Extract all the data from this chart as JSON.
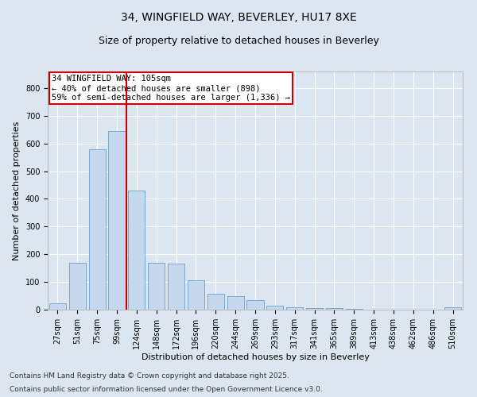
{
  "title_line1": "34, WINGFIELD WAY, BEVERLEY, HU17 8XE",
  "title_line2": "Size of property relative to detached houses in Beverley",
  "xlabel": "Distribution of detached houses by size in Beverley",
  "ylabel": "Number of detached properties",
  "categories": [
    "27sqm",
    "51sqm",
    "75sqm",
    "99sqm",
    "124sqm",
    "148sqm",
    "172sqm",
    "196sqm",
    "220sqm",
    "244sqm",
    "269sqm",
    "293sqm",
    "317sqm",
    "341sqm",
    "365sqm",
    "389sqm",
    "413sqm",
    "438sqm",
    "462sqm",
    "486sqm",
    "510sqm"
  ],
  "values": [
    22,
    168,
    580,
    645,
    430,
    168,
    165,
    105,
    57,
    48,
    33,
    15,
    10,
    7,
    5,
    4,
    0,
    0,
    0,
    0,
    8
  ],
  "bar_color": "#c5d8ed",
  "bar_edge_color": "#6b9fc8",
  "background_color": "#dce6f1",
  "grid_color": "#ffffff",
  "vline_color": "#cc0000",
  "annotation_text": "34 WINGFIELD WAY: 105sqm\n← 40% of detached houses are smaller (898)\n59% of semi-detached houses are larger (1,336) →",
  "annotation_box_color": "#ffffff",
  "annotation_box_edge": "#cc0000",
  "ylim": [
    0,
    860
  ],
  "yticks": [
    0,
    100,
    200,
    300,
    400,
    500,
    600,
    700,
    800
  ],
  "footer_line1": "Contains HM Land Registry data © Crown copyright and database right 2025.",
  "footer_line2": "Contains public sector information licensed under the Open Government Licence v3.0.",
  "title_fontsize": 10,
  "subtitle_fontsize": 9,
  "axis_label_fontsize": 8,
  "tick_fontsize": 7,
  "annotation_fontsize": 7.5,
  "footer_fontsize": 6.5
}
